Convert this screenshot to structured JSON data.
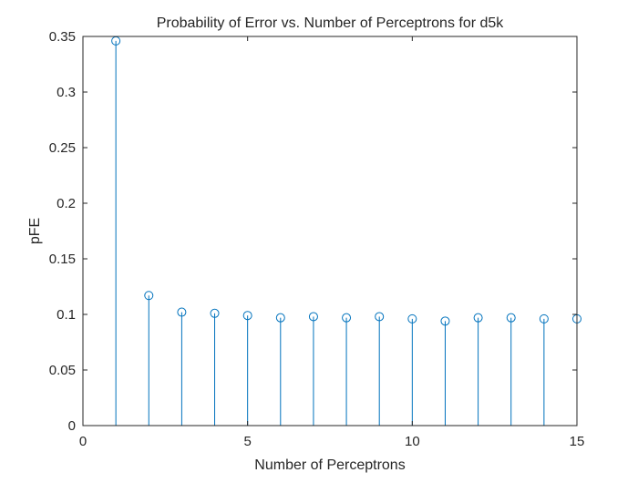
{
  "chart_data": {
    "type": "stem",
    "title": "Probability of Error vs. Number of Perceptrons for d5k",
    "xlabel": "Number of Perceptrons",
    "ylabel": "pFE",
    "xlim": [
      0,
      15
    ],
    "ylim": [
      0,
      0.35
    ],
    "xticks": [
      0,
      5,
      10,
      15
    ],
    "xtick_labels": [
      "0",
      "5",
      "10",
      "15"
    ],
    "yticks": [
      0,
      0.05,
      0.1,
      0.15,
      0.2,
      0.25,
      0.3,
      0.35
    ],
    "ytick_labels": [
      "0",
      "0.05",
      "0.1",
      "0.15",
      "0.2",
      "0.25",
      "0.3",
      "0.35"
    ],
    "grid": false,
    "x": [
      1,
      2,
      3,
      4,
      5,
      6,
      7,
      8,
      9,
      10,
      11,
      12,
      13,
      14,
      15
    ],
    "y": [
      0.346,
      0.117,
      0.102,
      0.101,
      0.099,
      0.097,
      0.098,
      0.097,
      0.098,
      0.096,
      0.094,
      0.097,
      0.097,
      0.096,
      0.096
    ],
    "colors": {
      "series": "#0072BD",
      "axes": "#262626",
      "background": "#ffffff"
    }
  }
}
